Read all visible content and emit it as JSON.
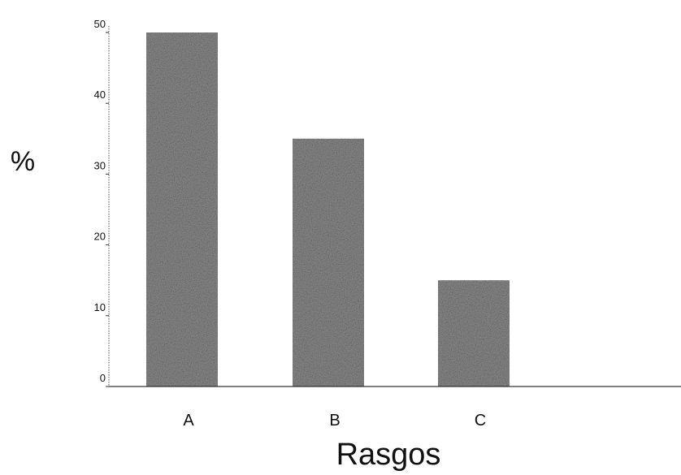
{
  "chart_data": {
    "type": "bar",
    "title": "",
    "xlabel": "Rasgos",
    "ylabel": "%",
    "categories": [
      "A",
      "B",
      "C"
    ],
    "values": [
      50,
      35,
      15
    ],
    "ylim": [
      0,
      50
    ],
    "yticks": [
      0,
      10,
      20,
      30,
      40,
      50
    ],
    "grid": false,
    "bar_color": "#8a8a8a"
  }
}
